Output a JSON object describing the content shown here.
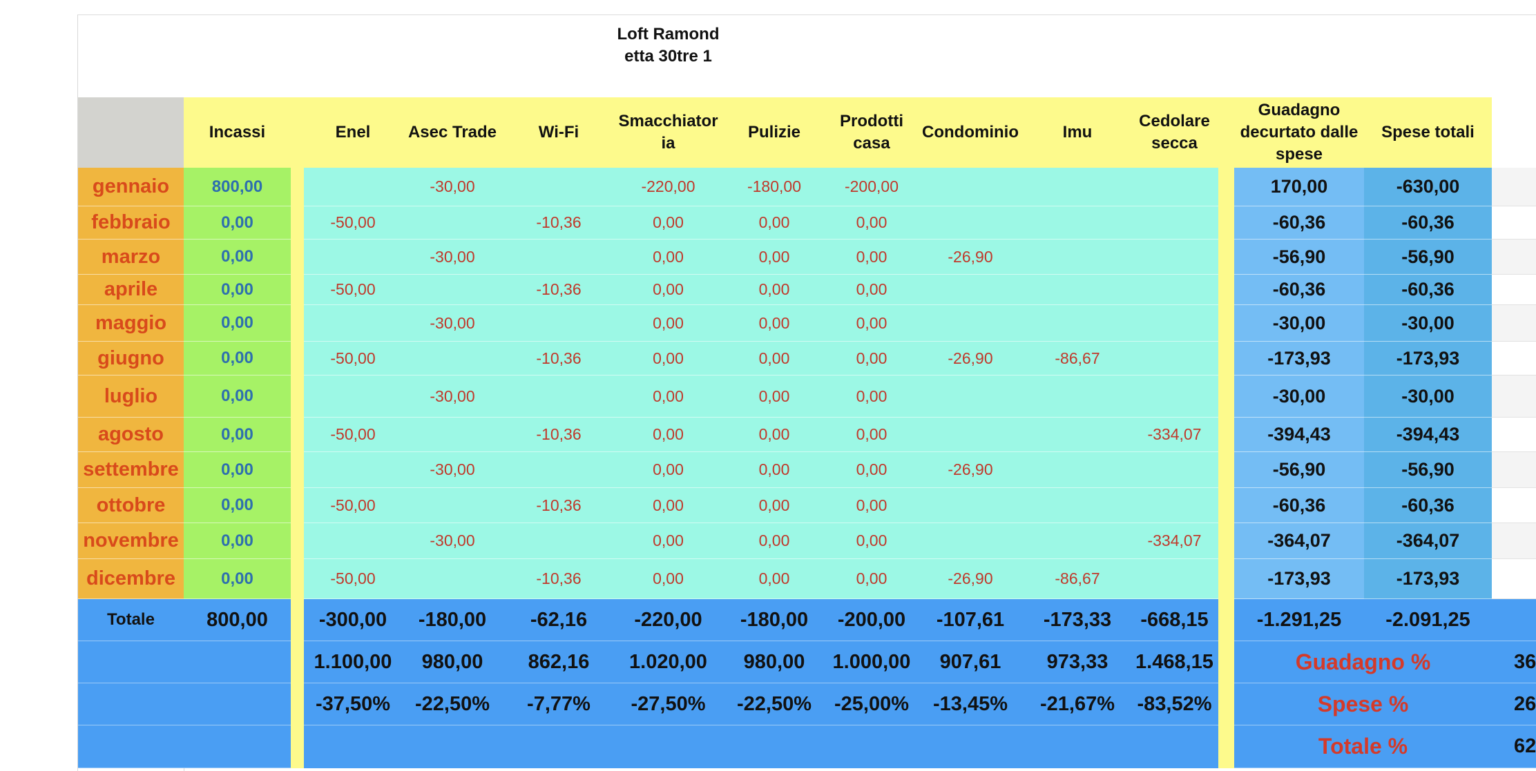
{
  "title": "Loft Ramondetta 30tre 1",
  "headers": {
    "incassi": "Incassi",
    "enel": "Enel",
    "asec": "Asec Trade",
    "wifi": "Wi-Fi",
    "smacchiatoria": "Smacchiatoria",
    "pulizie": "Pulizie",
    "prodotti": "Prodotti casa",
    "condominio": "Condominio",
    "imu": "Imu",
    "cedolare": "Cedolare secca",
    "guadagno": "Guadagno decurtato dalle spese",
    "spese": "Spese totali"
  },
  "rows": [
    {
      "month": "gennaio",
      "incassi": "800,00",
      "enel": "",
      "asec": "-30,00",
      "wifi": "",
      "smacchiatoria": "-220,00",
      "pulizie": "-180,00",
      "prodotti": "-200,00",
      "condominio": "",
      "imu": "",
      "cedolare": "",
      "guadagno": "170,00",
      "spese": "-630,00"
    },
    {
      "month": "febbraio",
      "incassi": "0,00",
      "enel": "-50,00",
      "asec": "",
      "wifi": "-10,36",
      "smacchiatoria": "0,00",
      "pulizie": "0,00",
      "prodotti": "0,00",
      "condominio": "",
      "imu": "",
      "cedolare": "",
      "guadagno": "-60,36",
      "spese": "-60,36"
    },
    {
      "month": "marzo",
      "incassi": "0,00",
      "enel": "",
      "asec": "-30,00",
      "wifi": "",
      "smacchiatoria": "0,00",
      "pulizie": "0,00",
      "prodotti": "0,00",
      "condominio": "-26,90",
      "imu": "",
      "cedolare": "",
      "guadagno": "-56,90",
      "spese": "-56,90"
    },
    {
      "month": "aprile",
      "incassi": "0,00",
      "enel": "-50,00",
      "asec": "",
      "wifi": "-10,36",
      "smacchiatoria": "0,00",
      "pulizie": "0,00",
      "prodotti": "0,00",
      "condominio": "",
      "imu": "",
      "cedolare": "",
      "guadagno": "-60,36",
      "spese": "-60,36"
    },
    {
      "month": "maggio",
      "incassi": "0,00",
      "enel": "",
      "asec": "-30,00",
      "wifi": "",
      "smacchiatoria": "0,00",
      "pulizie": "0,00",
      "prodotti": "0,00",
      "condominio": "",
      "imu": "",
      "cedolare": "",
      "guadagno": "-30,00",
      "spese": "-30,00"
    },
    {
      "month": "giugno",
      "incassi": "0,00",
      "enel": "-50,00",
      "asec": "",
      "wifi": "-10,36",
      "smacchiatoria": "0,00",
      "pulizie": "0,00",
      "prodotti": "0,00",
      "condominio": "-26,90",
      "imu": "-86,67",
      "cedolare": "",
      "guadagno": "-173,93",
      "spese": "-173,93"
    },
    {
      "month": "luglio",
      "incassi": "0,00",
      "enel": "",
      "asec": "-30,00",
      "wifi": "",
      "smacchiatoria": "0,00",
      "pulizie": "0,00",
      "prodotti": "0,00",
      "condominio": "",
      "imu": "",
      "cedolare": "",
      "guadagno": "-30,00",
      "spese": "-30,00"
    },
    {
      "month": "agosto",
      "incassi": "0,00",
      "enel": "-50,00",
      "asec": "",
      "wifi": "-10,36",
      "smacchiatoria": "0,00",
      "pulizie": "0,00",
      "prodotti": "0,00",
      "condominio": "",
      "imu": "",
      "cedolare": "-334,07",
      "guadagno": "-394,43",
      "spese": "-394,43"
    },
    {
      "month": "settembre",
      "incassi": "0,00",
      "enel": "",
      "asec": "-30,00",
      "wifi": "",
      "smacchiatoria": "0,00",
      "pulizie": "0,00",
      "prodotti": "0,00",
      "condominio": "-26,90",
      "imu": "",
      "cedolare": "",
      "guadagno": "-56,90",
      "spese": "-56,90"
    },
    {
      "month": "ottobre",
      "incassi": "0,00",
      "enel": "-50,00",
      "asec": "",
      "wifi": "-10,36",
      "smacchiatoria": "0,00",
      "pulizie": "0,00",
      "prodotti": "0,00",
      "condominio": "",
      "imu": "",
      "cedolare": "",
      "guadagno": "-60,36",
      "spese": "-60,36"
    },
    {
      "month": "novembre",
      "incassi": "0,00",
      "enel": "",
      "asec": "-30,00",
      "wifi": "",
      "smacchiatoria": "0,00",
      "pulizie": "0,00",
      "prodotti": "0,00",
      "condominio": "",
      "imu": "",
      "cedolare": "-334,07",
      "guadagno": "-364,07",
      "spese": "-364,07"
    },
    {
      "month": "dicembre",
      "incassi": "0,00",
      "enel": "-50,00",
      "asec": "",
      "wifi": "-10,36",
      "smacchiatoria": "0,00",
      "pulizie": "0,00",
      "prodotti": "0,00",
      "condominio": "-26,90",
      "imu": "-86,67",
      "cedolare": "",
      "guadagno": "-173,93",
      "spese": "-173,93"
    }
  ],
  "totals": {
    "label": "Totale",
    "incassi": "800,00",
    "enel": "-300,00",
    "asec": "-180,00",
    "wifi": "-62,16",
    "smacchiatoria": "-220,00",
    "pulizie": "-180,00",
    "prodotti": "-200,00",
    "condominio": "-107,61",
    "imu": "-173,33",
    "cedolare": "-668,15",
    "guadagno": "-1.291,25",
    "spese": "-2.091,25"
  },
  "diff_row": {
    "enel": "1.100,00",
    "asec": "980,00",
    "wifi": "862,16",
    "smacchiatoria": "1.020,00",
    "pulizie": "980,00",
    "prodotti": "1.000,00",
    "condominio": "907,61",
    "imu": "973,33",
    "cedolare": "1.468,15"
  },
  "pct_row": {
    "enel": "-37,50%",
    "asec": "-22,50%",
    "wifi": "-7,77%",
    "smacchiatoria": "-27,50%",
    "pulizie": "-22,50%",
    "prodotti": "-25,00%",
    "condominio": "-13,45%",
    "imu": "-21,67%",
    "cedolare": "-83,52%"
  },
  "summary": [
    {
      "label": "Guadagno %",
      "value": "36"
    },
    {
      "label": "Spese %",
      "value": "26"
    },
    {
      "label": "Totale %",
      "value": "62"
    }
  ],
  "colors": {
    "header_yellow": "#fdfa8c",
    "month_orange": "#f0b63f",
    "month_text": "#d84a1b",
    "income_green": "#a6f266",
    "income_text": "#2e6fae",
    "expense_teal": "#9cf8e5",
    "expense_text": "#c0392b",
    "guadagno_blue": "#74bdf4",
    "spese_blue": "#5cb3e8",
    "total_blue": "#4a9ef3",
    "corner_gray": "#d3d3cf",
    "pct_label_red": "#d43a2a"
  }
}
